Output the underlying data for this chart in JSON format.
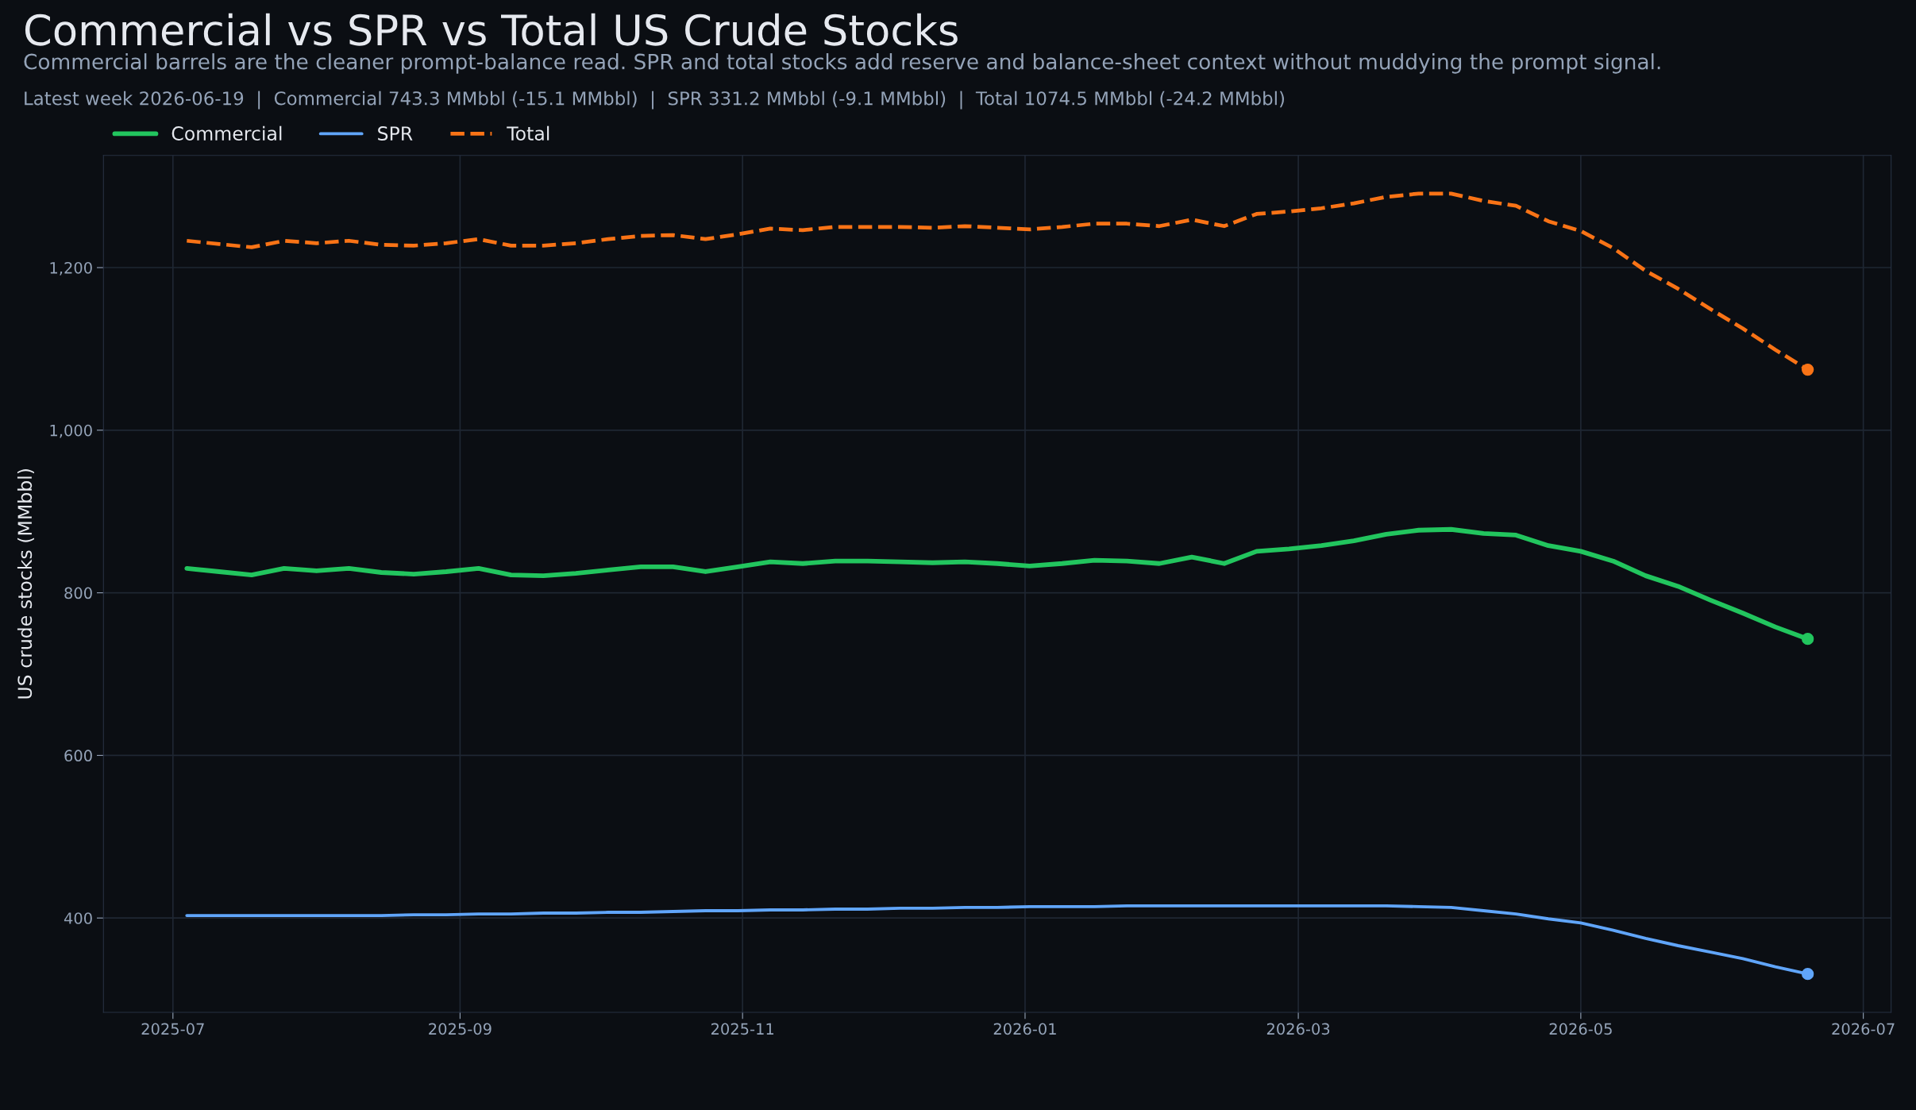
{
  "chart_data": {
    "type": "line",
    "title": "Commercial vs SPR vs Total US Crude Stocks",
    "subtitle": "Commercial barrels are the cleaner prompt-balance read. SPR and total stocks add reserve and balance-sheet context without muddying the prompt signal.",
    "annotations": [
      "Latest week 2026-06-19  |  Commercial 743.3 MMbbl (-15.1 MMbbl)  |  SPR 331.2 MMbbl (-9.1 MMbbl)  |  Total 1074.5 MMbbl (-24.2 MMbbl)"
    ],
    "ylabel": "US crude stocks (MMbbl)",
    "x": [
      "2025-07-04",
      "2025-07-11",
      "2025-07-18",
      "2025-07-25",
      "2025-08-01",
      "2025-08-08",
      "2025-08-15",
      "2025-08-22",
      "2025-08-29",
      "2025-09-05",
      "2025-09-12",
      "2025-09-19",
      "2025-09-26",
      "2025-10-03",
      "2025-10-10",
      "2025-10-17",
      "2025-10-24",
      "2025-10-31",
      "2025-11-07",
      "2025-11-14",
      "2025-11-21",
      "2025-11-28",
      "2025-12-05",
      "2025-12-12",
      "2025-12-19",
      "2025-12-26",
      "2026-01-02",
      "2026-01-09",
      "2026-01-16",
      "2026-01-23",
      "2026-01-30",
      "2026-02-06",
      "2026-02-13",
      "2026-02-20",
      "2026-02-27",
      "2026-03-06",
      "2026-03-13",
      "2026-03-20",
      "2026-03-27",
      "2026-04-03",
      "2026-04-10",
      "2026-04-17",
      "2026-04-24",
      "2026-05-01",
      "2026-05-08",
      "2026-05-15",
      "2026-05-22",
      "2026-05-29",
      "2026-06-05",
      "2026-06-12",
      "2026-06-19"
    ],
    "series": [
      {
        "name": "Commercial",
        "color": "#22c55e",
        "line_style": "solid",
        "values": [
          830,
          826,
          822,
          830,
          827,
          830,
          825,
          823,
          826,
          830,
          822,
          821,
          824,
          828,
          832,
          832,
          826,
          832,
          838,
          836,
          839,
          839,
          838,
          837,
          838,
          836,
          833,
          836,
          840,
          839,
          836,
          844,
          836,
          851,
          854,
          858,
          864,
          872,
          877,
          878,
          873,
          871,
          858,
          851,
          839,
          821,
          808,
          791,
          775,
          758,
          743.3
        ]
      },
      {
        "name": "SPR",
        "color": "#60a5fa",
        "line_style": "solid",
        "values": [
          403,
          403,
          403,
          403,
          403,
          403,
          403,
          404,
          404,
          405,
          405,
          406,
          406,
          407,
          407,
          408,
          409,
          409,
          410,
          410,
          411,
          411,
          412,
          412,
          413,
          413,
          414,
          414,
          414,
          415,
          415,
          415,
          415,
          415,
          415,
          415,
          415,
          415,
          414,
          413,
          409,
          405,
          399,
          394,
          385,
          375,
          366,
          358,
          350,
          340,
          331.2
        ]
      },
      {
        "name": "Total",
        "color": "#f97316",
        "line_style": "dashed",
        "values": [
          1233,
          1229,
          1225,
          1233,
          1230,
          1233,
          1228,
          1227,
          1230,
          1235,
          1227,
          1227,
          1230,
          1235,
          1239,
          1240,
          1235,
          1241,
          1248,
          1246,
          1250,
          1250,
          1250,
          1249,
          1251,
          1249,
          1247,
          1250,
          1254,
          1254,
          1251,
          1259,
          1251,
          1266,
          1269,
          1273,
          1279,
          1287,
          1291,
          1291,
          1282,
          1276,
          1257,
          1245,
          1224,
          1196,
          1174,
          1149,
          1125,
          1099,
          1074.5
        ]
      }
    ],
    "xlim": [
      "2025-06-16",
      "2026-07-07"
    ],
    "xticks": [
      {
        "value": "2025-07-01",
        "label": "2025-07"
      },
      {
        "value": "2025-09-01",
        "label": "2025-09"
      },
      {
        "value": "2025-11-01",
        "label": "2025-11"
      },
      {
        "value": "2026-01-01",
        "label": "2026-01"
      },
      {
        "value": "2026-03-01",
        "label": "2026-03"
      },
      {
        "value": "2026-05-01",
        "label": "2026-05"
      },
      {
        "value": "2026-07-01",
        "label": "2026-07"
      }
    ],
    "ylim": [
      284,
      1338
    ],
    "yticks": [
      {
        "value": 400,
        "label": "400"
      },
      {
        "value": 600,
        "label": "600"
      },
      {
        "value": 800,
        "label": "800"
      },
      {
        "value": 1000,
        "label": "1,000"
      },
      {
        "value": 1200,
        "label": "1,200"
      }
    ],
    "grid": true,
    "legend": "top left"
  }
}
